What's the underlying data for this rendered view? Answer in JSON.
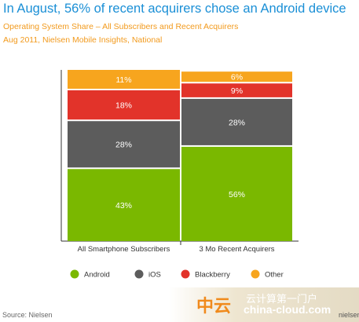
{
  "header": {
    "title": "In August, 56% of recent acquirers chose an Android device",
    "subtitle_line1": "Operating System Share – All Subscribers and Recent Acquirers",
    "subtitle_line2": "Aug 2011, Nielsen Mobile Insights, National"
  },
  "chart_data": {
    "type": "bar",
    "stacked": true,
    "percent_stacked": true,
    "categories": [
      "All Smartphone Subscribers",
      "3 Mo Recent Acquirers"
    ],
    "series": [
      {
        "name": "Android",
        "values": [
          43,
          56
        ],
        "labels": [
          "43%",
          "56%"
        ],
        "color": "#7ab800"
      },
      {
        "name": "iOS",
        "values": [
          28,
          28
        ],
        "labels": [
          "28%",
          "28%"
        ],
        "color": "#5c5c5c"
      },
      {
        "name": "Blackberry",
        "values": [
          18,
          9
        ],
        "labels": [
          "18%",
          "9%"
        ],
        "color": "#e2332a"
      },
      {
        "name": "Other",
        "values": [
          11,
          6
        ],
        "labels": [
          "11%",
          "6%"
        ],
        "color": "#f7a51e"
      }
    ],
    "ylim": [
      0,
      100
    ],
    "legend_position": "bottom",
    "grid": false
  },
  "footer": {
    "source": "Source: Nielsen"
  },
  "watermark": {
    "chinese_mark": "中云",
    "chinese_text": "云计算第一门户",
    "url": "china-cloud.com",
    "brand": "nielsen"
  }
}
